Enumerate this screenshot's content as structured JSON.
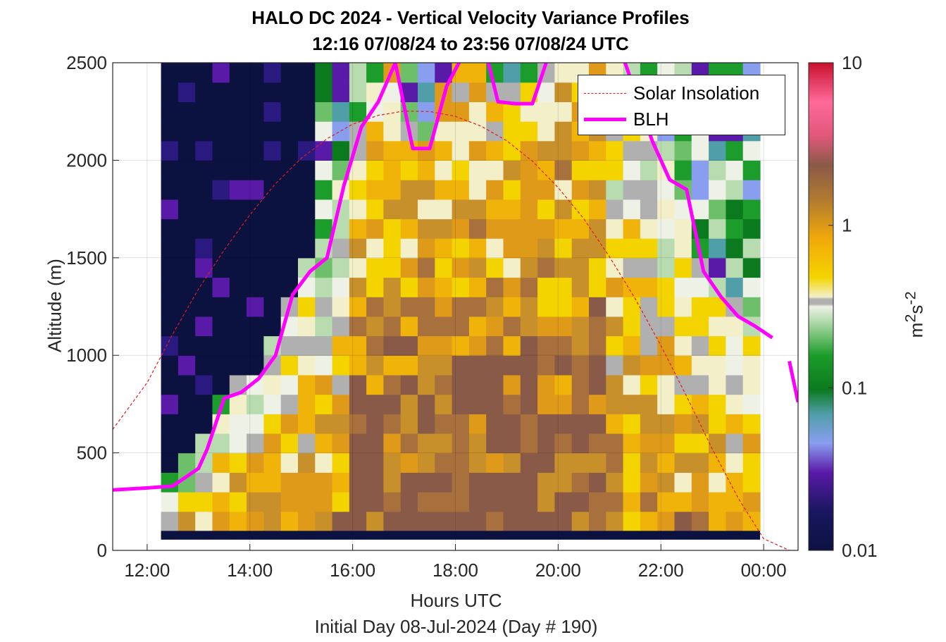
{
  "chart_data": {
    "type": "heatmap",
    "title": "HALO DC 2024 - Vertical Velocity Variance Profiles",
    "subtitle": "12:16 07/08/24 to 23:56 07/08/24  UTC",
    "xlabel": "Hours UTC",
    "xlabel_sub": "Initial Day 08-Jul-2024 (Day # 190)",
    "ylabel": "Altitude (m)",
    "colorbar_label_base": "m",
    "colorbar_label_sup1": "2",
    "colorbar_label_mid": "s",
    "colorbar_label_sup2": "-2",
    "xlim": [
      11.33,
      24.67
    ],
    "ylim": [
      0,
      2500
    ],
    "x_ticks": [
      12,
      14,
      16,
      18,
      20,
      22,
      24
    ],
    "x_tick_labels": [
      "12:00",
      "14:00",
      "16:00",
      "18:00",
      "20:00",
      "22:00",
      "00:00"
    ],
    "y_ticks": [
      0,
      500,
      1000,
      1500,
      2000,
      2500
    ],
    "y_tick_labels": [
      "0",
      "500",
      "1000",
      "1500",
      "2000",
      "2500"
    ],
    "colorbar_ticks": [
      0.01,
      0.1,
      1,
      10
    ],
    "colorbar_tick_labels": [
      "0.01",
      "0.1",
      "1",
      "10"
    ],
    "colorbar_scale": "log",
    "grid": true,
    "legend_position": "top-right",
    "heatmap_time_range": [
      12.27,
      23.93
    ],
    "heatmap_altitude_range": [
      100,
      2500
    ],
    "heatmap_cells_x": 35,
    "heatmap_cells_y": 24,
    "series": [
      {
        "name": "Solar Insolation",
        "style": "dashed",
        "color": "#e31a1c",
        "x": [
          11.33,
          12.0,
          12.5,
          13.0,
          13.5,
          14.0,
          14.5,
          15.0,
          15.5,
          16.0,
          16.5,
          17.0,
          17.5,
          18.0,
          18.5,
          19.0,
          19.5,
          20.0,
          20.5,
          21.0,
          21.5,
          22.0,
          22.5,
          23.0,
          23.5,
          24.0,
          24.5,
          24.6
        ],
        "y": [
          620,
          860,
          1110,
          1340,
          1540,
          1720,
          1880,
          2010,
          2110,
          2185,
          2230,
          2252,
          2250,
          2225,
          2175,
          2100,
          1995,
          1860,
          1700,
          1505,
          1290,
          1050,
          790,
          520,
          270,
          60,
          0,
          0
        ]
      },
      {
        "name": "BLH",
        "style": "solid",
        "color": "#ff00ff",
        "x": [
          11.33,
          12.0,
          12.5,
          13.0,
          13.17,
          13.5,
          13.83,
          14.17,
          14.5,
          14.83,
          15.17,
          15.5,
          15.83,
          16.17,
          16.5,
          16.83,
          17.17,
          17.5,
          17.83,
          18.17,
          18.5,
          18.83,
          19.17,
          19.5,
          19.83,
          20.17,
          20.5,
          20.83,
          21.17,
          21.5,
          21.83,
          22.17,
          22.5,
          22.83,
          23.17,
          23.5,
          23.83,
          24.17
        ],
        "y": [
          310,
          320,
          330,
          420,
          520,
          780,
          810,
          880,
          1000,
          1310,
          1430,
          1500,
          1870,
          2170,
          2300,
          2500,
          2060,
          2060,
          2380,
          2550,
          2650,
          2300,
          2290,
          2290,
          2550,
          2750,
          2750,
          2750,
          2600,
          2350,
          2100,
          1900,
          1850,
          1430,
          1300,
          1200,
          1150,
          1090
        ]
      },
      {
        "name": "BLH late segment",
        "style": "solid",
        "color": "#ff00ff",
        "x": [
          24.5,
          24.67
        ],
        "y": [
          970,
          760
        ]
      }
    ]
  }
}
